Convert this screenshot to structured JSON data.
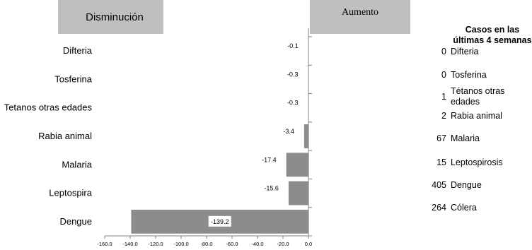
{
  "chart_data": {
    "type": "bar",
    "orientation": "horizontal",
    "header_left": "Disminución",
    "header_right": "Aumento",
    "categories": [
      "Difteria",
      "Tosferina",
      "Tetanos otras edades",
      "Rabia animal",
      "Malaria",
      "Leptospira",
      "Dengue"
    ],
    "values": [
      -0.1,
      -0.3,
      -0.3,
      -3.4,
      -17.4,
      -15.6,
      -139.2
    ],
    "value_labels": [
      "-0.1",
      "-0.3",
      "-0.3",
      "-3.4",
      "-17.4",
      "-15.6",
      "-139.2"
    ],
    "xlim": [
      -160,
      0
    ],
    "ticks": [
      "-160.0",
      "-140.0",
      "-120.0",
      "-100.0",
      "-80.0",
      "-60.0",
      "-40.0",
      "-20.0",
      "0.0"
    ],
    "bar_color": "#8c8c8c",
    "header_color": "#bfbfbf"
  },
  "cases": {
    "title": "Casos en las últimas 4 semanas",
    "rows": [
      {
        "count": "0",
        "label": "Difteria"
      },
      {
        "count": "0",
        "label": "Tosferina"
      },
      {
        "count": "1",
        "label": "Tétanos otras edades"
      },
      {
        "count": "2",
        "label": "Rabia animal"
      },
      {
        "count": "67",
        "label": "Malaria"
      },
      {
        "count": "15",
        "label": "Leptospirosis"
      },
      {
        "count": "405",
        "label": "Dengue"
      },
      {
        "count": "264",
        "label": "Cólera"
      }
    ]
  }
}
